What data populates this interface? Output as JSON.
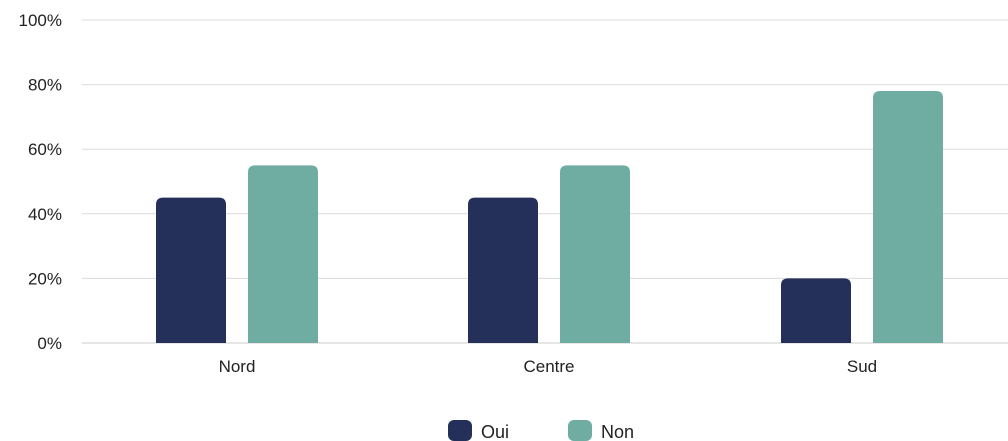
{
  "chart_data": {
    "type": "bar",
    "title": "",
    "xlabel": "",
    "ylabel": "",
    "categories": [
      "Nord",
      "Centre",
      "Sud"
    ],
    "series": [
      {
        "name": "Oui",
        "values": [
          45,
          45,
          20
        ],
        "color": "#25305a"
      },
      {
        "name": "Non",
        "values": [
          55,
          55,
          78
        ],
        "color": "#6fada3"
      }
    ],
    "ylim": [
      0,
      100
    ],
    "yticks": [
      "0%",
      "20%",
      "40%",
      "60%",
      "80%",
      "100%"
    ],
    "ytick_values": [
      0,
      20,
      40,
      60,
      80,
      100
    ],
    "grid": true,
    "legend_position": "bottom"
  },
  "colors": {
    "grid": "#dcdcdc",
    "axis": "#cccccc"
  }
}
